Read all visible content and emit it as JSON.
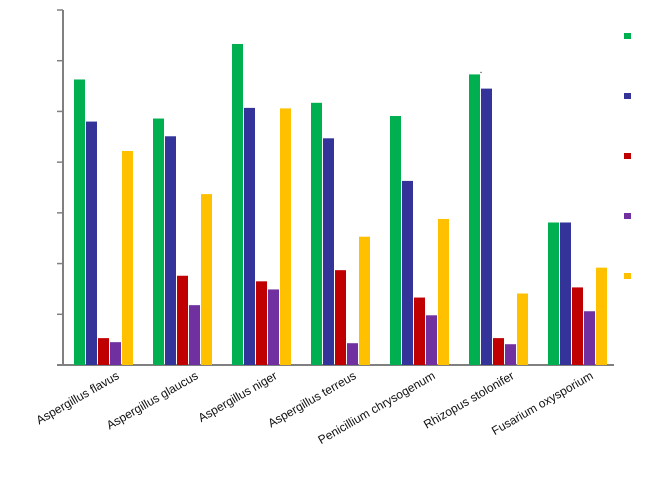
{
  "chart_data": {
    "type": "bar",
    "title": "",
    "xlabel": "",
    "ylabel": "",
    "ylim": [
      0,
      7
    ],
    "y_ticks": [
      0,
      1,
      2,
      3,
      4,
      5,
      6,
      7
    ],
    "y_tick_labels_visible": false,
    "grid": false,
    "legend_position": "right",
    "legend_labels_visible": false,
    "error_bars": "dotted, upper side only",
    "categories": [
      "Aspergillus flavus",
      "Aspergillus glaucus",
      "Aspergillus niger",
      "Aspergillus terreus",
      "Penicillium chrysogenum",
      "Rhizopus stolonifer",
      "Fusarium oxysporium"
    ],
    "series": [
      {
        "color": "#00b050",
        "values": [
          5.63,
          4.86,
          6.33,
          5.17,
          4.91,
          5.73,
          2.81
        ],
        "errors": [
          0.0,
          0.0,
          0.0,
          0.0,
          0.0,
          0.05,
          0.0
        ]
      },
      {
        "color": "#333399",
        "values": [
          4.8,
          4.51,
          5.07,
          4.47,
          3.63,
          5.45,
          2.81
        ],
        "errors": [
          0.0,
          0.0,
          0.0,
          0.0,
          0.0,
          0.0,
          0.0
        ]
      },
      {
        "color": "#c00000",
        "values": [
          0.53,
          1.76,
          1.65,
          1.87,
          1.33,
          0.53,
          1.53
        ],
        "errors": [
          0.0,
          0.0,
          0.0,
          0.0,
          0.0,
          0.0,
          0.0
        ]
      },
      {
        "color": "#7030a0",
        "values": [
          0.45,
          1.18,
          1.49,
          0.43,
          0.98,
          0.41,
          1.06
        ],
        "errors": [
          0.0,
          0.0,
          0.0,
          0.0,
          0.0,
          0.0,
          0.0
        ]
      },
      {
        "color": "#ffc000",
        "values": [
          4.22,
          3.37,
          5.06,
          2.53,
          2.88,
          1.41,
          1.92
        ],
        "errors": [
          0.0,
          0.0,
          0.0,
          0.0,
          0.0,
          0.0,
          0.0
        ]
      }
    ]
  }
}
